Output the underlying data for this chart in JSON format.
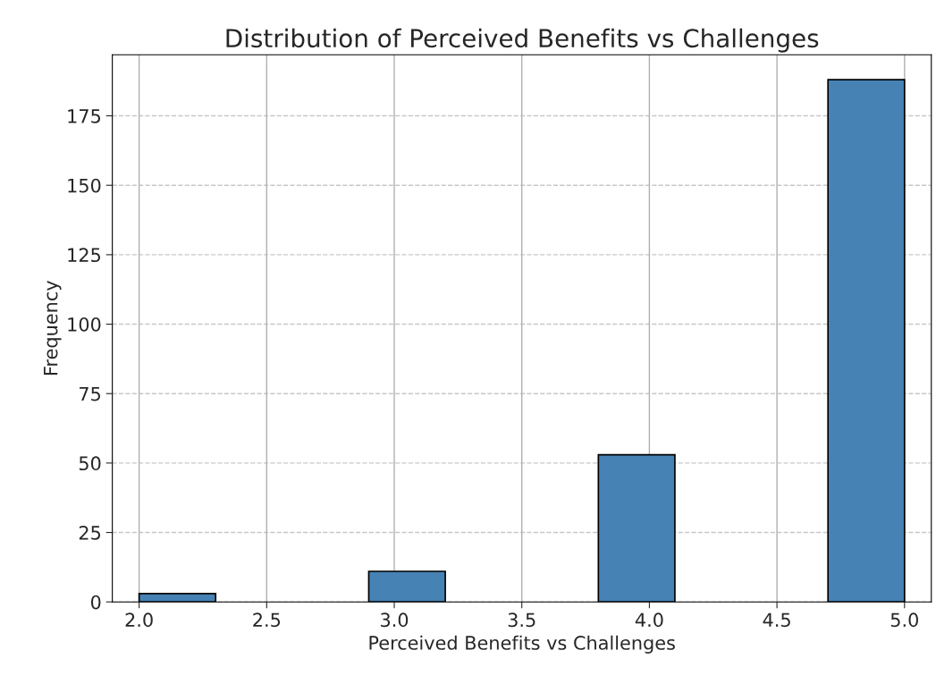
{
  "chart_data": {
    "type": "histogram",
    "title": "Distribution of Perceived Benefits vs Challenges",
    "xlabel": "Perceived Benefits vs Challenges",
    "ylabel": "Frequency",
    "bins": [
      2.0,
      2.3,
      2.6,
      2.9,
      3.2,
      3.5,
      3.8,
      4.1,
      4.4,
      4.7,
      5.0
    ],
    "values": [
      3,
      0,
      0,
      11,
      0,
      0,
      53,
      0,
      0,
      188
    ],
    "color": "#4682b4",
    "xlim": [
      1.895,
      5.105
    ],
    "xticks": [
      {
        "value": 2,
        "label": "2.0"
      },
      2.5,
      {
        "value": 3,
        "label": "3.0"
      },
      3.5,
      {
        "value": 4,
        "label": "4.0"
      },
      4.5,
      {
        "value": 5,
        "label": "5.0"
      }
    ],
    "ylim": [
      0,
      197
    ],
    "yticks": [
      0,
      25,
      50,
      75,
      100,
      125,
      150,
      175
    ],
    "grid": true
  }
}
